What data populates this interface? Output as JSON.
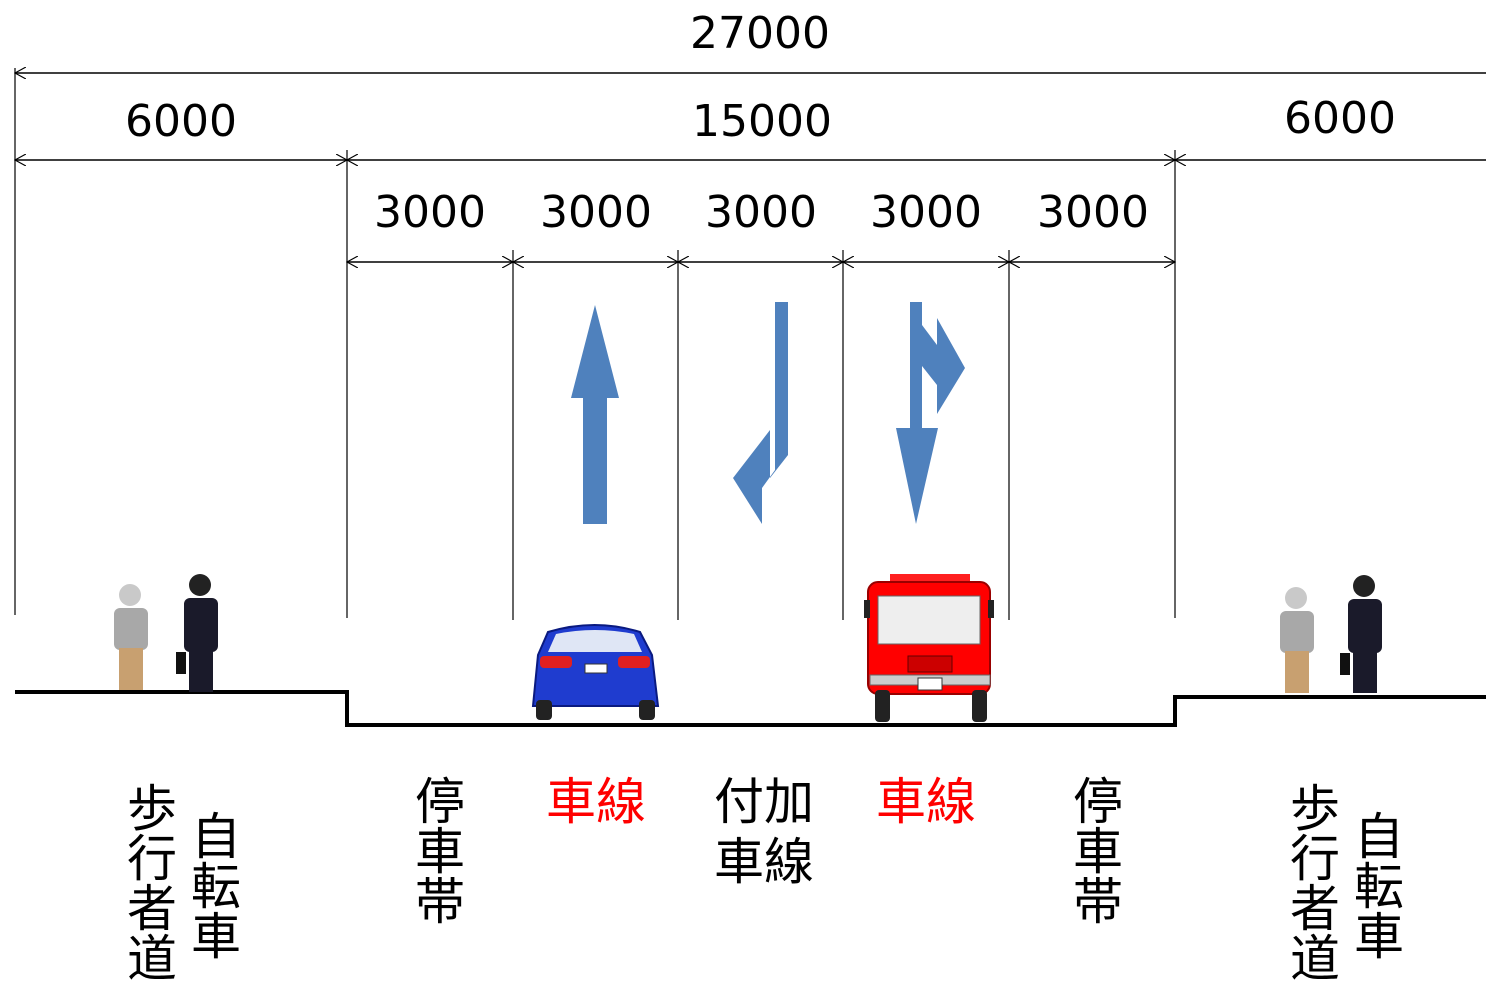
{
  "dimensions": {
    "total": 27000,
    "sections": [
      6000,
      15000,
      6000
    ],
    "lanes": [
      3000,
      3000,
      3000,
      3000,
      3000
    ]
  },
  "left_sidewalk": {
    "pedestrian": "歩行者道",
    "bicycle": "自転車"
  },
  "lanes": [
    "停車帯",
    "車線",
    "付加車線",
    "車線",
    "停車帯"
  ],
  "right_sidewalk": {
    "pedestrian": "歩行者道",
    "bicycle": "自転車"
  }
}
